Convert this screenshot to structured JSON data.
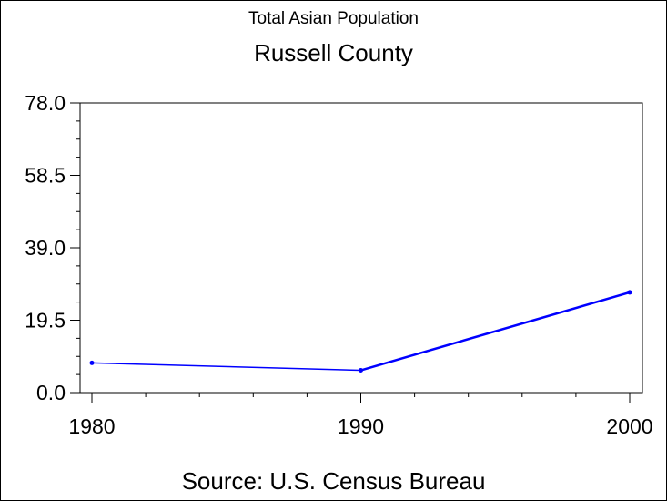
{
  "chart_data": {
    "type": "line",
    "title": "Total Asian Population",
    "subtitle": "Russell County",
    "xlabel": "",
    "ylabel": "",
    "source": "Source: U.S. Census Bureau",
    "x": [
      1980,
      1990,
      2000
    ],
    "x_tick_labels": [
      "1980",
      "1990",
      "2000"
    ],
    "y_tick_labels": [
      "0.0",
      "19.5",
      "39.0",
      "58.5",
      "78.0"
    ],
    "series": [
      {
        "values": [
          8,
          6,
          27
        ],
        "color": "#0000ff"
      }
    ],
    "xlim": [
      1980,
      2000
    ],
    "ylim": [
      0,
      78
    ],
    "grid": false
  }
}
